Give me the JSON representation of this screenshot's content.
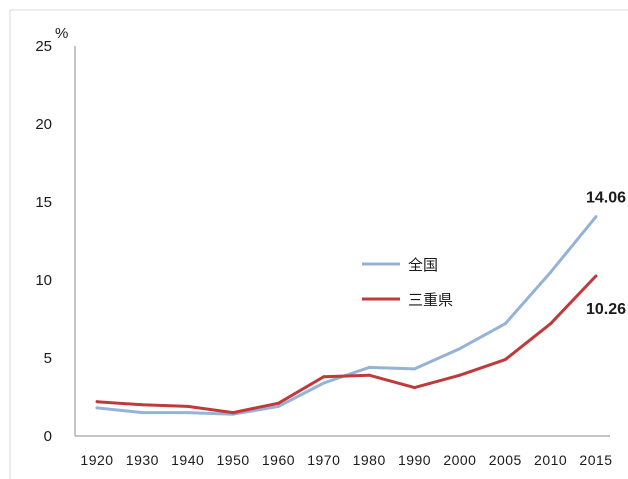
{
  "chart_data": {
    "type": "line",
    "unit_label": "%",
    "categories": [
      "1920",
      "1930",
      "1940",
      "1950",
      "1960",
      "1970",
      "1980",
      "1990",
      "2000",
      "2005",
      "2010",
      "2015"
    ],
    "x_tick_labels": [
      "1920",
      "1930",
      "1940",
      "1950",
      "1960",
      "1970",
      "1980",
      "1990",
      "2000",
      "2005",
      "2010",
      "2015"
    ],
    "y_ticks": [
      "0",
      "5",
      "10",
      "15",
      "20",
      "25"
    ],
    "ylim": [
      0,
      25
    ],
    "grid": false,
    "legend_position": "center-right",
    "series": [
      {
        "name": "全国",
        "color": "#95b3d7",
        "values": [
          1.8,
          1.5,
          1.5,
          1.4,
          1.9,
          3.4,
          4.4,
          4.3,
          5.6,
          7.2,
          10.5,
          14.06
        ],
        "end_label": "14.06"
      },
      {
        "name": "三重県",
        "color": "#c0393b",
        "values": [
          2.2,
          2.0,
          1.9,
          1.5,
          2.1,
          3.8,
          3.9,
          3.1,
          3.9,
          4.9,
          7.2,
          10.26
        ],
        "end_label": "10.26"
      }
    ]
  }
}
